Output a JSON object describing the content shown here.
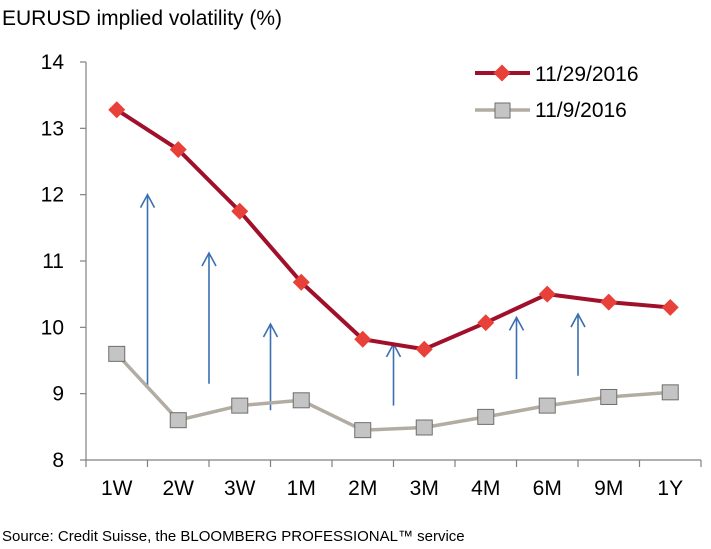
{
  "chart_data": {
    "type": "line",
    "title": "EURUSD implied volatility (%)",
    "xlabel": "",
    "ylabel": "",
    "categories": [
      "1W",
      "2W",
      "3W",
      "1M",
      "2M",
      "3M",
      "4M",
      "6M",
      "9M",
      "1Y"
    ],
    "ylim": [
      8,
      14
    ],
    "yticks": [
      "8",
      "9",
      "10",
      "11",
      "12",
      "13",
      "14"
    ],
    "legend_position": "top-right",
    "series": [
      {
        "name": "11/29/2016",
        "color": "#a0102a",
        "marker": "diamond",
        "marker_color": "#e8413a",
        "values": [
          13.28,
          12.68,
          11.75,
          10.68,
          9.82,
          9.67,
          10.07,
          10.5,
          10.38,
          10.3
        ]
      },
      {
        "name": "11/9/2016",
        "color": "#b3aca3",
        "marker": "square",
        "marker_color": "#c4c4c4",
        "values": [
          9.6,
          8.6,
          8.82,
          8.9,
          8.45,
          8.49,
          8.65,
          8.82,
          8.95,
          9.02
        ]
      }
    ],
    "annotations": {
      "arrow_color": "#3a6fb0",
      "arrows": [
        {
          "category": "2W",
          "from": 9.1,
          "to": 12.0
        },
        {
          "category": "3W",
          "from": 9.15,
          "to": 11.12
        },
        {
          "category": "1M",
          "from": 8.75,
          "to": 10.05
        },
        {
          "category": "3M",
          "from": 8.82,
          "to": 9.75
        },
        {
          "category": "6M",
          "from": 9.22,
          "to": 10.15
        },
        {
          "category": "9M",
          "from": 9.27,
          "to": 10.2
        }
      ]
    }
  },
  "source": "Source: Credit Suisse, the BLOOMBERG PROFESSIONAL™ service"
}
